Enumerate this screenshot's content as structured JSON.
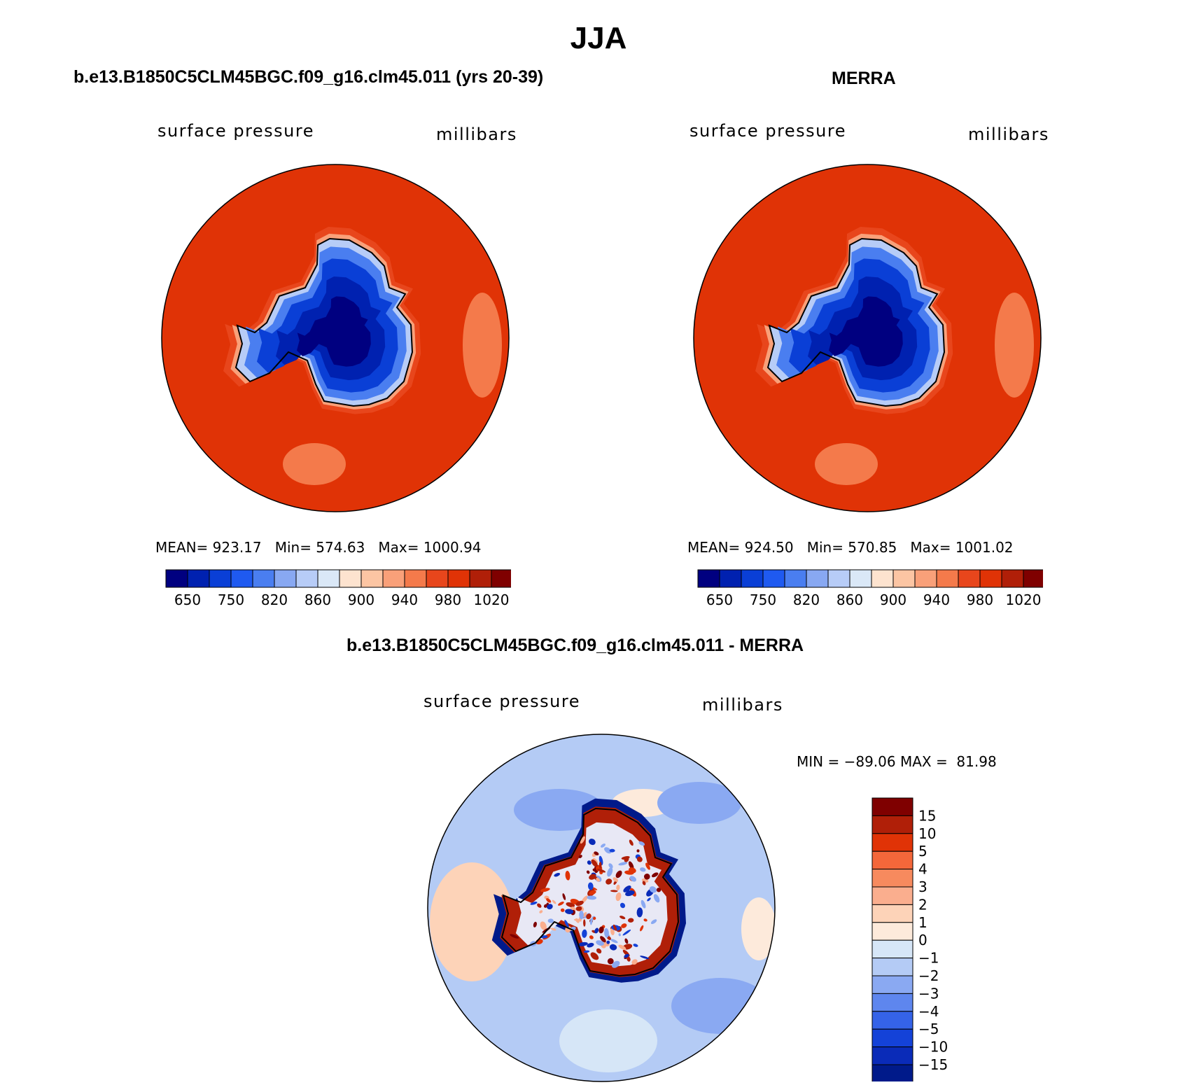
{
  "title": "JJA",
  "panels": [
    {
      "id": "model",
      "title": "b.e13.B1850C5CLM45BGC.f09_g16.clm45.011 (yrs 20-39)",
      "left_label": "surface pressure",
      "right_label": "millibars",
      "stats": "MEAN= 923.17   Min= 574.63   Max= 1000.94"
    },
    {
      "id": "obs",
      "title": "MERRA",
      "left_label": "surface pressure",
      "right_label": "millibars",
      "stats": "MEAN= 924.50   Min= 570.85   Max= 1001.02"
    },
    {
      "id": "diff",
      "title": "b.e13.B1850C5CLM45BGC.f09_g16.clm45.011 - MERRA",
      "left_label": "surface pressure",
      "right_label": "millibars",
      "stats": "MIN = −89.06 MAX =  81.98"
    }
  ],
  "chart_data": [
    {
      "type": "heatmap",
      "projection": "south-polar stereographic",
      "title": "b.e13.B1850C5CLM45BGC.f09_g16.clm45.011 (yrs 20-39)",
      "variable": "surface pressure",
      "units": "millibars",
      "mean": 923.17,
      "min": 574.63,
      "max": 1000.94,
      "colorbar": {
        "orientation": "horizontal",
        "tick_labels": [
          "650",
          "750",
          "820",
          "860",
          "900",
          "940",
          "980",
          "1020"
        ],
        "colors": [
          "#000080",
          "#0021b0",
          "#0a3fd6",
          "#1f5af0",
          "#4a7ef0",
          "#88a8f2",
          "#b7ccf7",
          "#dae8f7",
          "#fde3cf",
          "#fcc5a3",
          "#f9a079",
          "#f47a4b",
          "#e8461c",
          "#e03306",
          "#b01f08",
          "#7f0000"
        ]
      },
      "fields": {
        "ocean": "#e03306",
        "interior": "#000080"
      }
    },
    {
      "type": "heatmap",
      "projection": "south-polar stereographic",
      "title": "MERRA",
      "variable": "surface pressure",
      "units": "millibars",
      "mean": 924.5,
      "min": 570.85,
      "max": 1001.02,
      "colorbar": {
        "orientation": "horizontal",
        "tick_labels": [
          "650",
          "750",
          "820",
          "860",
          "900",
          "940",
          "980",
          "1020"
        ],
        "colors": [
          "#000080",
          "#0021b0",
          "#0a3fd6",
          "#1f5af0",
          "#4a7ef0",
          "#88a8f2",
          "#b7ccf7",
          "#dae8f7",
          "#fde3cf",
          "#fcc5a3",
          "#f9a079",
          "#f47a4b",
          "#e8461c",
          "#e03306",
          "#b01f08",
          "#7f0000"
        ]
      },
      "fields": {
        "ocean": "#e03306",
        "interior": "#000080"
      }
    },
    {
      "type": "heatmap",
      "projection": "south-polar stereographic",
      "title": "b.e13.B1850C5CLM45BGC.f09_g16.clm45.011 - MERRA",
      "variable": "surface pressure",
      "units": "millibars",
      "min": -89.06,
      "max": 81.98,
      "colorbar": {
        "orientation": "vertical",
        "tick_labels": [
          "15",
          "10",
          "5",
          "4",
          "3",
          "2",
          "1",
          "0",
          "−1",
          "−2",
          "−3",
          "−4",
          "−5",
          "−10",
          "−15"
        ],
        "colors": [
          "#7f0000",
          "#b01f08",
          "#e03306",
          "#f4673a",
          "#f78a5e",
          "#faae8e",
          "#fdd3b8",
          "#fdeadb",
          "#d6e6f7",
          "#b4cbf5",
          "#8aa9f2",
          "#5e86ee",
          "#3563e8",
          "#1442d8",
          "#0a2bb8",
          "#001a8a"
        ]
      },
      "fields": {
        "ocean": "#b4cbf5",
        "interior": "#e8e8f5"
      }
    }
  ]
}
